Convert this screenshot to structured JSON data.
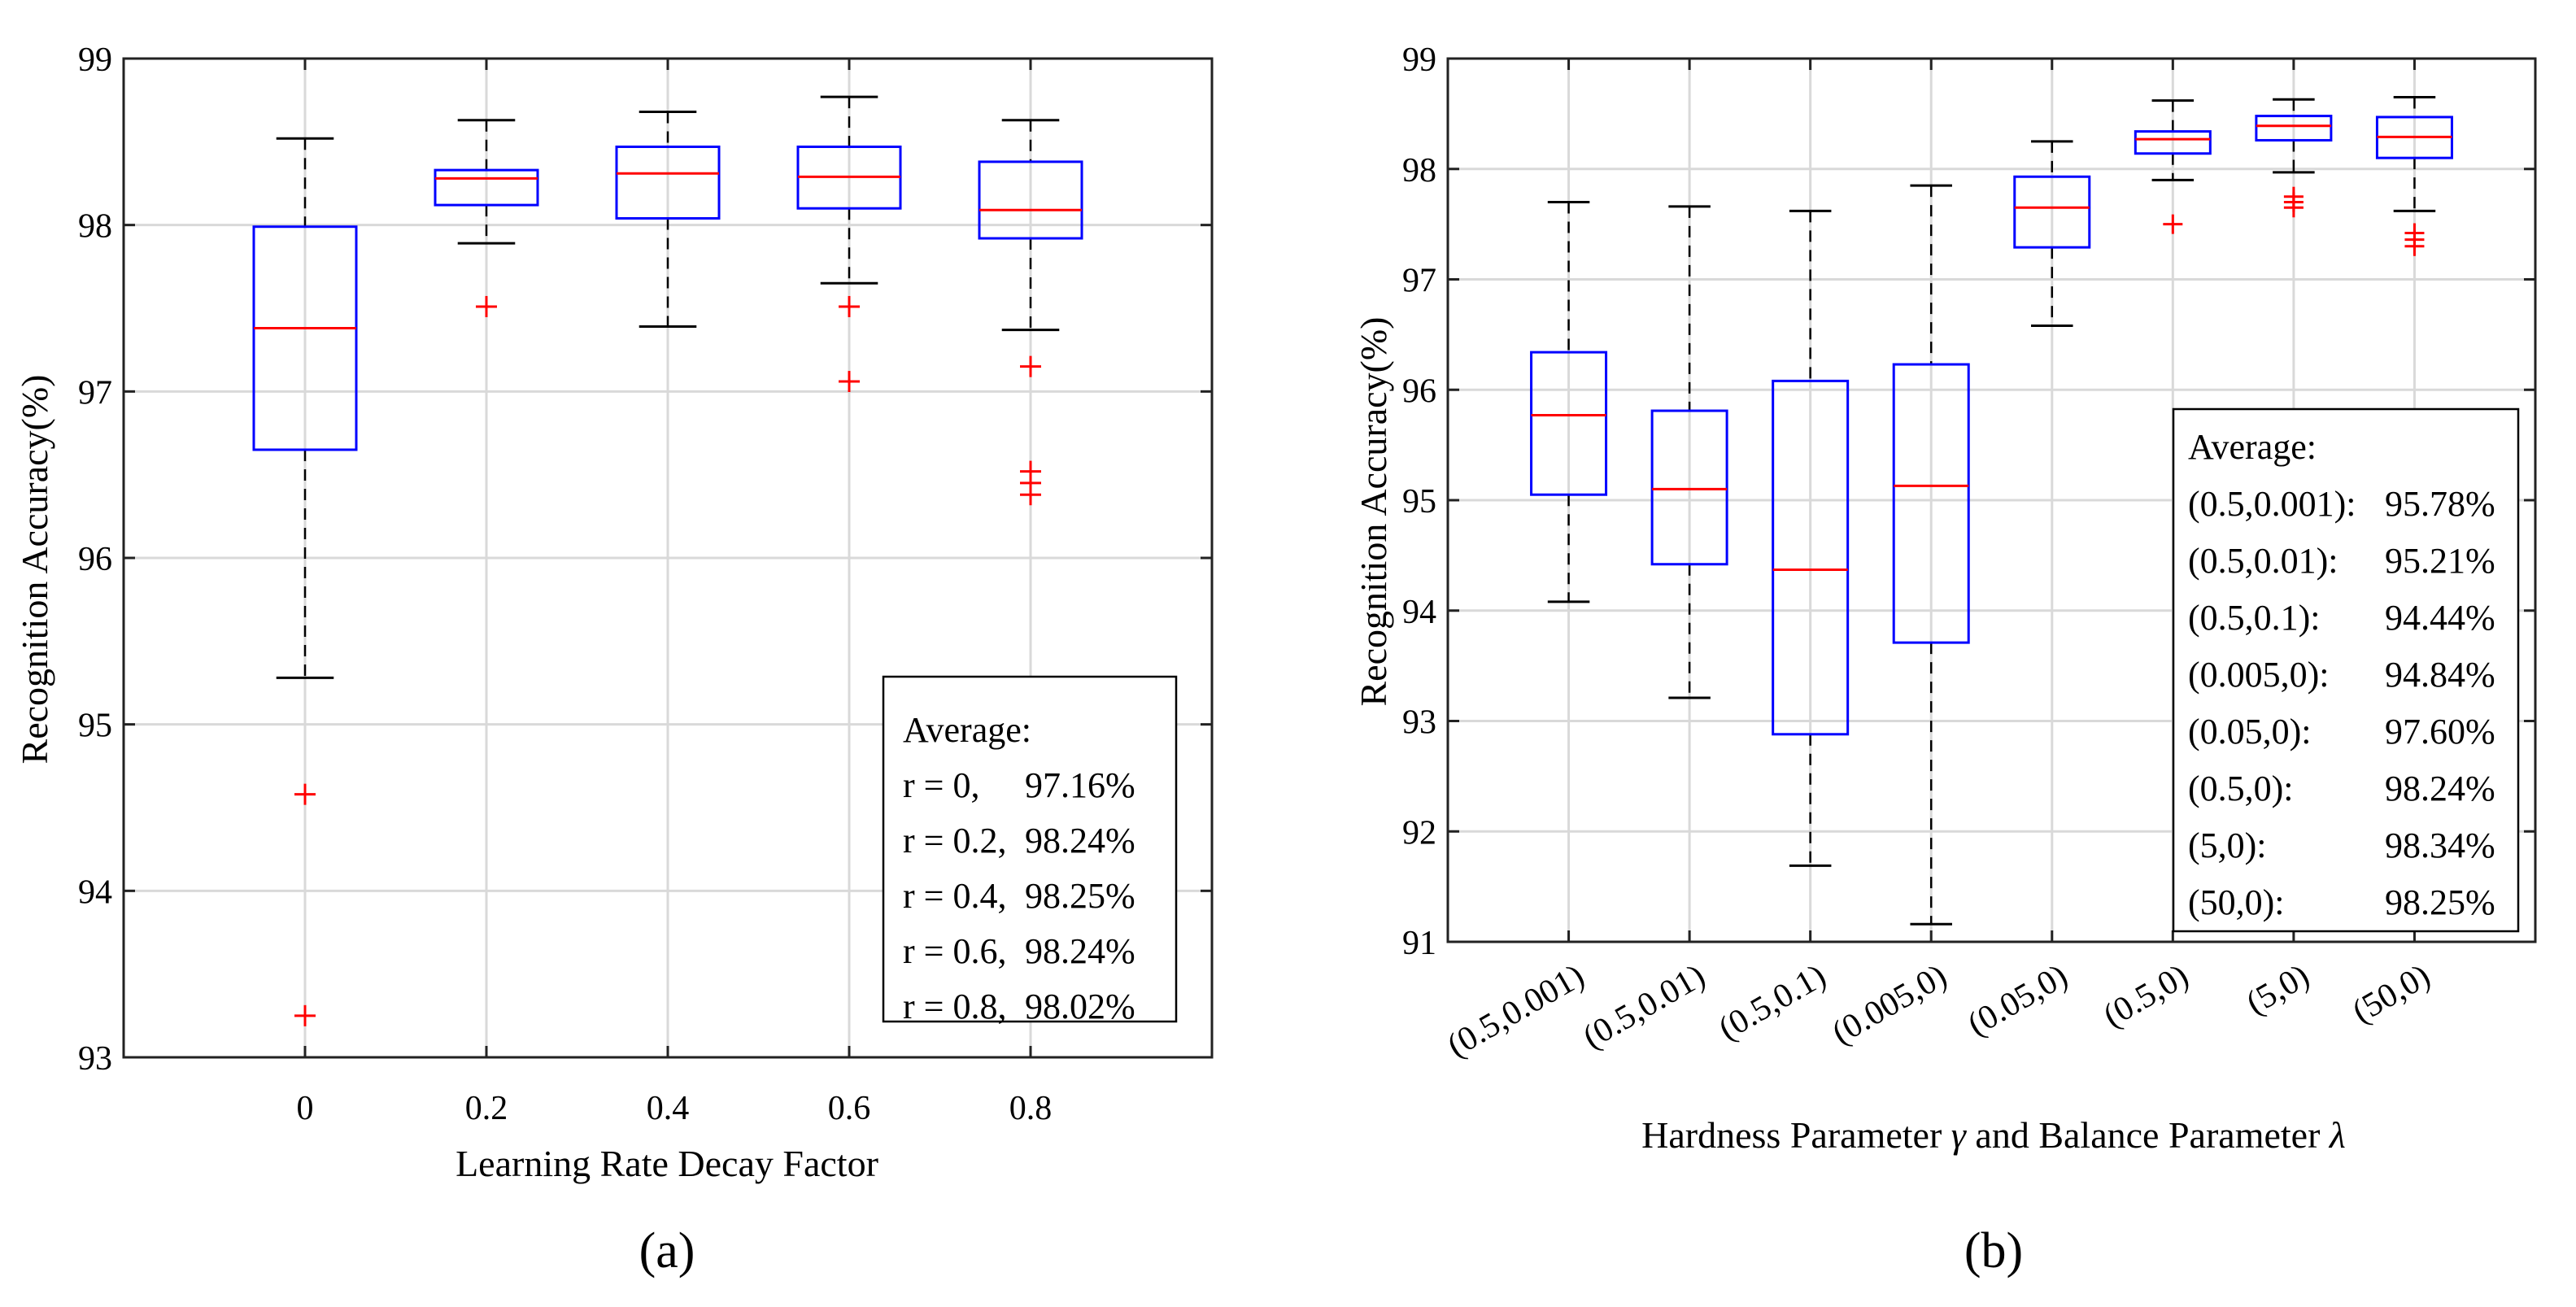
{
  "chart_data": [
    {
      "type": "box",
      "panel_label": "(a)",
      "xlabel": "Learning Rate Decay Factor",
      "ylabel": "Recognition Accuracy(%)",
      "ylim": [
        93,
        99
      ],
      "yticks": [
        93,
        94,
        95,
        96,
        97,
        98,
        99
      ],
      "grid": true,
      "categories": [
        "0",
        "0.2",
        "0.4",
        "0.6",
        "0.8"
      ],
      "boxes": [
        {
          "whisker_low": 95.28,
          "q1": 96.65,
          "median": 97.38,
          "q3": 97.99,
          "whisker_high": 98.52,
          "outliers": [
            94.58,
            93.25
          ]
        },
        {
          "whisker_low": 97.89,
          "q1": 98.12,
          "median": 98.28,
          "q3": 98.33,
          "whisker_high": 98.63,
          "outliers": [
            97.51
          ]
        },
        {
          "whisker_low": 97.39,
          "q1": 98.04,
          "median": 98.31,
          "q3": 98.47,
          "whisker_high": 98.68,
          "outliers": []
        },
        {
          "whisker_low": 97.65,
          "q1": 98.1,
          "median": 98.29,
          "q3": 98.47,
          "whisker_high": 98.77,
          "outliers": [
            97.51,
            97.06
          ]
        },
        {
          "whisker_low": 97.37,
          "q1": 97.92,
          "median": 98.09,
          "q3": 98.38,
          "whisker_high": 98.63,
          "outliers": [
            97.15,
            96.52,
            96.45,
            96.38
          ]
        }
      ],
      "legend": {
        "position": "bottom-right",
        "title": "Average:",
        "entries": [
          {
            "label": "r = 0,",
            "value": "97.16%"
          },
          {
            "label": "r = 0.2,",
            "value": "98.24%"
          },
          {
            "label": "r = 0.4,",
            "value": "98.25%"
          },
          {
            "label": "r = 0.6,",
            "value": "98.24%"
          },
          {
            "label": "r = 0.8,",
            "value": "98.02%"
          }
        ]
      },
      "colors": {
        "box": "#0000ff",
        "median": "#ff0000",
        "outlier": "#ff0000",
        "whisker": "#000000"
      }
    },
    {
      "type": "box",
      "panel_label": "(b)",
      "xlabel_parts": [
        "Hardness Parameter ",
        "γ",
        " and Balance Parameter ",
        "λ"
      ],
      "ylabel": "Recognition Accuracy(%)",
      "ylim": [
        91,
        99
      ],
      "yticks": [
        91,
        92,
        93,
        94,
        95,
        96,
        97,
        98,
        99
      ],
      "grid": true,
      "categories": [
        "(0.5,0.001)",
        "(0.5,0.01)",
        "(0.5,0.1)",
        "(0.005,0)",
        "(0.05,0)",
        "(0.5,0)",
        "(5,0)",
        "(50,0)"
      ],
      "boxes": [
        {
          "whisker_low": 94.08,
          "q1": 95.05,
          "median": 95.77,
          "q3": 96.34,
          "whisker_high": 97.7,
          "outliers": []
        },
        {
          "whisker_low": 93.21,
          "q1": 94.42,
          "median": 95.1,
          "q3": 95.81,
          "whisker_high": 97.66,
          "outliers": []
        },
        {
          "whisker_low": 91.69,
          "q1": 92.88,
          "median": 94.37,
          "q3": 96.08,
          "whisker_high": 97.62,
          "outliers": []
        },
        {
          "whisker_low": 91.16,
          "q1": 93.71,
          "median": 95.13,
          "q3": 96.23,
          "whisker_high": 97.85,
          "outliers": []
        },
        {
          "whisker_low": 96.58,
          "q1": 97.29,
          "median": 97.65,
          "q3": 97.93,
          "whisker_high": 98.25,
          "outliers": []
        },
        {
          "whisker_low": 97.9,
          "q1": 98.14,
          "median": 98.27,
          "q3": 98.34,
          "whisker_high": 98.62,
          "outliers": [
            97.5
          ]
        },
        {
          "whisker_low": 97.97,
          "q1": 98.26,
          "median": 98.39,
          "q3": 98.48,
          "whisker_high": 98.63,
          "outliers": [
            97.75,
            97.7,
            97.65
          ]
        },
        {
          "whisker_low": 97.62,
          "q1": 98.1,
          "median": 98.29,
          "q3": 98.47,
          "whisker_high": 98.65,
          "outliers": [
            97.42,
            97.36,
            97.3
          ]
        }
      ],
      "legend": {
        "position": "bottom-right",
        "title": "Average:",
        "entries": [
          {
            "label": "(0.5,0.001):",
            "value": "95.78%"
          },
          {
            "label": "(0.5,0.01):",
            "value": "95.21%"
          },
          {
            "label": "(0.5,0.1):",
            "value": "94.44%"
          },
          {
            "label": "(0.005,0):",
            "value": "94.84%"
          },
          {
            "label": "(0.05,0):",
            "value": "97.60%"
          },
          {
            "label": "(0.5,0):",
            "value": "98.24%"
          },
          {
            "label": "(5,0):",
            "value": "98.34%"
          },
          {
            "label": "(50,0):",
            "value": "98.25%"
          }
        ]
      },
      "colors": {
        "box": "#0000ff",
        "median": "#ff0000",
        "outlier": "#ff0000",
        "whisker": "#000000"
      }
    }
  ]
}
